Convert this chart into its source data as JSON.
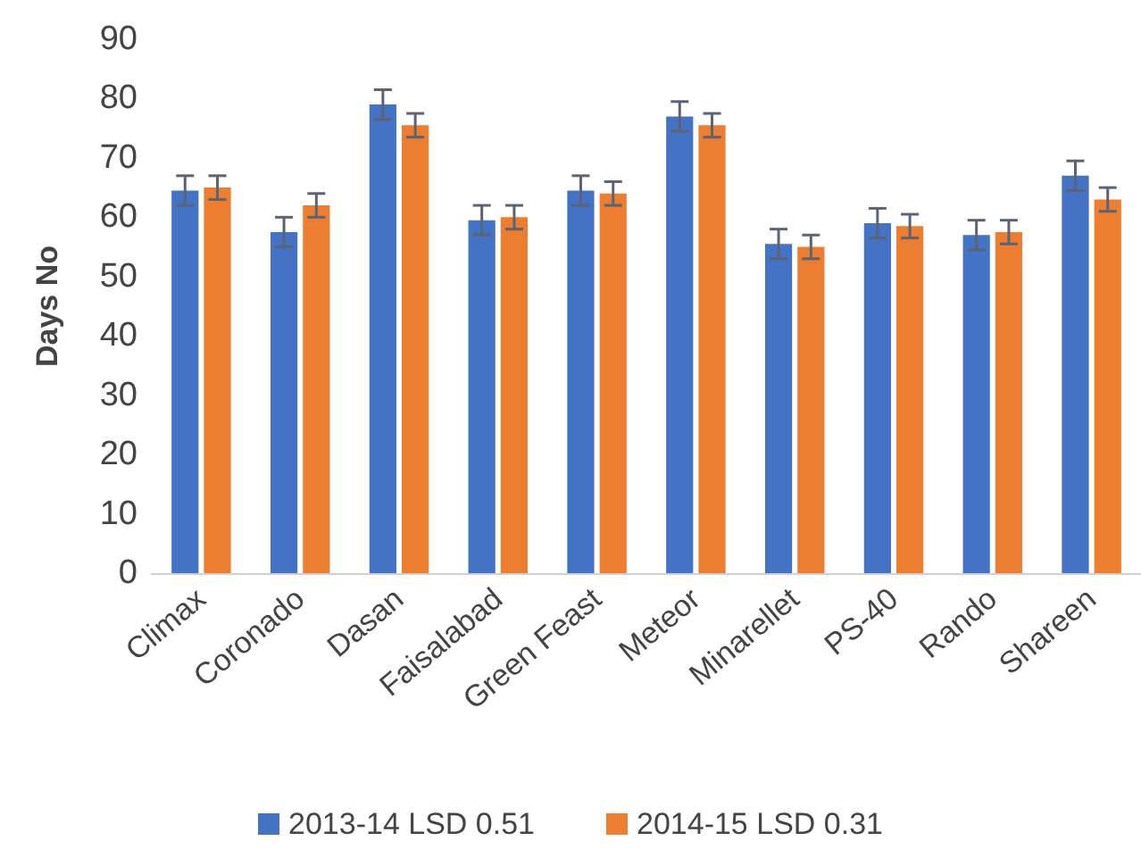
{
  "chart_data": {
    "type": "bar",
    "ylabel": "Days No",
    "categories": [
      "Climax",
      "Coronado",
      "Dasan",
      "Faisalabad",
      "Green Feast",
      "Meteor",
      "Minarellet",
      "PS-40",
      "Rando",
      "Shareen"
    ],
    "series": [
      {
        "name": "2013-14 LSD 0.51",
        "color": "#4472c4",
        "values": [
          64.5,
          57.5,
          79,
          59.5,
          64.5,
          77,
          55.5,
          59,
          57,
          67
        ],
        "errors": [
          2.5,
          2.5,
          2.5,
          2.5,
          2.5,
          2.5,
          2.5,
          2.5,
          2.5,
          2.5
        ]
      },
      {
        "name": "2014-15 LSD 0.31",
        "color": "#ed7d31",
        "values": [
          65,
          62,
          75.5,
          60,
          64,
          75.5,
          55,
          58.5,
          57.5,
          63
        ],
        "errors": [
          2,
          2,
          2,
          2,
          2,
          2,
          2,
          2,
          2,
          2
        ]
      }
    ],
    "ylim": [
      0,
      90
    ],
    "yticks": [
      0,
      10,
      20,
      30,
      40,
      50,
      60,
      70,
      80,
      90
    ],
    "grid": false,
    "legend": "bottom"
  }
}
